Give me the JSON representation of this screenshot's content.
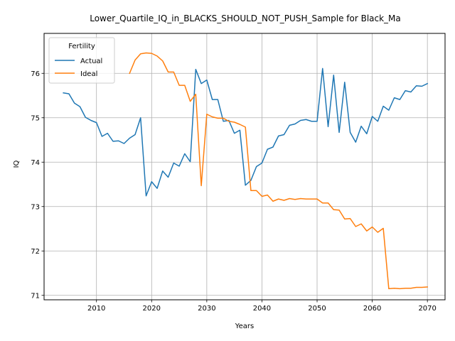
{
  "chart_data": {
    "type": "line",
    "title": "Lower_Quartile_IQ_in_BLACKS_SHOULD_NOT_PUSH_Sample for Black_Ma",
    "xlabel": "Years",
    "ylabel": "IQ",
    "xlim": [
      2000.5,
      2073.2
    ],
    "ylim": [
      70.9,
      76.9
    ],
    "xticks": [
      2010,
      2020,
      2030,
      2040,
      2050,
      2060,
      2070
    ],
    "yticks": [
      71,
      72,
      73,
      74,
      75,
      76
    ],
    "grid": true,
    "legend": {
      "title": "Fertility",
      "position": "top-left"
    },
    "series": [
      {
        "name": "Actual",
        "color": "#1f77b4",
        "x": [
          2004,
          2005,
          2006,
          2007,
          2008,
          2009,
          2010,
          2011,
          2012,
          2013,
          2014,
          2015,
          2016,
          2017,
          2018,
          2019,
          2020,
          2021,
          2022,
          2023,
          2024,
          2025,
          2026,
          2027,
          2028,
          2029,
          2030,
          2031,
          2032,
          2033,
          2034,
          2035,
          2036,
          2037,
          2038,
          2039,
          2040,
          2041,
          2042,
          2043,
          2044,
          2045,
          2046,
          2047,
          2048,
          2049,
          2050,
          2051,
          2052,
          2053,
          2054,
          2055,
          2056,
          2057,
          2058,
          2059,
          2060,
          2061,
          2062,
          2063,
          2064,
          2065,
          2066,
          2067,
          2068,
          2069,
          2070
        ],
        "y": [
          75.56,
          75.54,
          75.33,
          75.25,
          75.01,
          74.94,
          74.89,
          74.58,
          74.65,
          74.47,
          74.48,
          74.42,
          74.54,
          74.62,
          75.0,
          73.24,
          73.56,
          73.41,
          73.8,
          73.66,
          73.98,
          73.91,
          74.19,
          74.01,
          76.09,
          75.77,
          75.85,
          75.41,
          75.41,
          74.92,
          74.94,
          74.65,
          74.72,
          73.48,
          73.59,
          73.9,
          73.98,
          74.29,
          74.34,
          74.59,
          74.62,
          74.83,
          74.86,
          74.94,
          74.96,
          74.92,
          74.92,
          76.11,
          74.8,
          75.96,
          74.67,
          75.8,
          74.67,
          74.45,
          74.81,
          74.64,
          75.03,
          74.92,
          75.26,
          75.17,
          75.45,
          75.41,
          75.61,
          75.58,
          75.72,
          75.71,
          75.77
        ]
      },
      {
        "name": "Ideal",
        "color": "#ff7f0e",
        "x": [
          2016,
          2017,
          2018,
          2019,
          2020,
          2021,
          2022,
          2023,
          2024,
          2025,
          2026,
          2027,
          2028,
          2029,
          2030,
          2031,
          2032,
          2033,
          2034,
          2035,
          2036,
          2037,
          2038,
          2039,
          2040,
          2041,
          2042,
          2043,
          2044,
          2045,
          2046,
          2047,
          2048,
          2049,
          2050,
          2051,
          2052,
          2053,
          2054,
          2055,
          2056,
          2057,
          2058,
          2059,
          2060,
          2061,
          2062,
          2063,
          2064,
          2065,
          2066,
          2067,
          2068,
          2069,
          2070
        ],
        "y": [
          76.0,
          76.3,
          76.44,
          76.46,
          76.45,
          76.39,
          76.28,
          76.03,
          76.03,
          75.73,
          75.73,
          75.37,
          75.53,
          73.47,
          75.08,
          75.02,
          74.99,
          74.99,
          74.92,
          74.9,
          74.85,
          74.79,
          73.36,
          73.36,
          73.23,
          73.26,
          73.12,
          73.17,
          73.14,
          73.18,
          73.16,
          73.18,
          73.17,
          73.17,
          73.17,
          73.08,
          73.08,
          72.93,
          72.92,
          72.72,
          72.73,
          72.55,
          72.61,
          72.45,
          72.54,
          72.42,
          72.51,
          71.15,
          71.16,
          71.15,
          71.16,
          71.16,
          71.18,
          71.18,
          71.19
        ]
      }
    ]
  }
}
